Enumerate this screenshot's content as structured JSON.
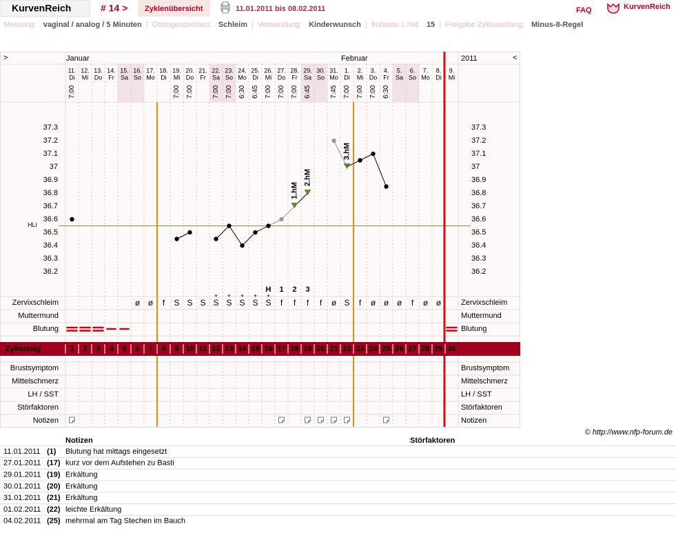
{
  "header": {
    "logo_text": "KurvenReich",
    "cycle": "# 14 >",
    "tab": "Zyklenübersicht",
    "range": "11.01.2011 bis 08.02.2011",
    "faq": "FAQ",
    "brand": "KurvenReich"
  },
  "info": {
    "separator": "|",
    "items": [
      {
        "label": "Messung:",
        "value": "vaginal / analog / 5 Minuten"
      },
      {
        "label": "Östrogenzeichen:",
        "value": "Schleim"
      },
      {
        "label": "Verwendung:",
        "value": "Kinderwunsch"
      },
      {
        "label": "früheste 1.hM:",
        "value": 15
      },
      {
        "label": "Freigabe Zyklusanfang:",
        "value": "Minus-8-Regel"
      }
    ]
  },
  "chart": {
    "nav_left": ">",
    "nav_right": "<",
    "year": "2011",
    "days": [
      {
        "date": "11.",
        "weekday": "Di",
        "time": "7:00",
        "month": "Januar"
      },
      {
        "date": "12.",
        "weekday": "Mi",
        "time": null,
        "month": null
      },
      {
        "date": "13.",
        "weekday": "Do",
        "time": null,
        "month": null
      },
      {
        "date": "14.",
        "weekday": "Fr",
        "time": null,
        "month": null
      },
      {
        "date": "15.",
        "weekday": "Sa",
        "time": null,
        "month": null
      },
      {
        "date": "16.",
        "weekday": "So",
        "time": null,
        "month": null
      },
      {
        "date": "17.",
        "weekday": "Mo",
        "time": null,
        "month": null
      },
      {
        "date": "18.",
        "weekday": "Di",
        "time": null,
        "month": null
      },
      {
        "date": "19.",
        "weekday": "Mi",
        "time": "7:00",
        "month": null
      },
      {
        "date": "20.",
        "weekday": "Do",
        "time": "7:00",
        "month": null
      },
      {
        "date": "21.",
        "weekday": "Fr",
        "time": null,
        "month": null
      },
      {
        "date": "22.",
        "weekday": "Sa",
        "time": "7:00",
        "month": null
      },
      {
        "date": "23.",
        "weekday": "So",
        "time": "7:00",
        "month": null
      },
      {
        "date": "24.",
        "weekday": "Mo",
        "time": "6:30",
        "month": null
      },
      {
        "date": "25.",
        "weekday": "Di",
        "time": "6:45",
        "month": null
      },
      {
        "date": "26.",
        "weekday": "Mi",
        "time": "7:00",
        "month": null
      },
      {
        "date": "27.",
        "weekday": "Do",
        "time": "7:00",
        "month": null
      },
      {
        "date": "28.",
        "weekday": "Fr",
        "time": "7:00",
        "month": null
      },
      {
        "date": "29.",
        "weekday": "Sa",
        "time": "6:45",
        "month": null
      },
      {
        "date": "30.",
        "weekday": "So",
        "time": null,
        "month": null
      },
      {
        "date": "31.",
        "weekday": "Mo",
        "time": "7:45",
        "month": null
      },
      {
        "date": "1.",
        "weekday": "Di",
        "time": "7:00",
        "month": "Februar"
      },
      {
        "date": "2.",
        "weekday": "Mi",
        "time": "7:00",
        "month": null
      },
      {
        "date": "3.",
        "weekday": "Do",
        "time": "7:00",
        "month": null
      },
      {
        "date": "4.",
        "weekday": "Fr",
        "time": "6:30",
        "month": null
      },
      {
        "date": "5.",
        "weekday": "Sa",
        "time": null,
        "month": null
      },
      {
        "date": "6.",
        "weekday": "So",
        "time": null,
        "month": null
      },
      {
        "date": "7.",
        "weekday": "Mo",
        "time": null,
        "month": null
      },
      {
        "date": "8.",
        "weekday": "Di",
        "time": null,
        "month": null
      },
      {
        "date": "9.",
        "weekday": "Mi",
        "time": null,
        "month": null
      }
    ],
    "temperature": [
      36.6,
      null,
      null,
      null,
      null,
      null,
      null,
      null,
      36.45,
      36.5,
      null,
      36.45,
      36.55,
      36.4,
      36.5,
      36.55,
      36.6,
      36.7,
      36.8,
      null,
      37.2,
      37.0,
      37.05,
      37.1,
      36.85,
      null,
      null,
      null,
      null,
      null
    ],
    "disregarded": [
      false,
      false,
      false,
      false,
      false,
      false,
      false,
      false,
      false,
      false,
      false,
      false,
      false,
      false,
      false,
      false,
      true,
      false,
      false,
      false,
      true,
      false,
      false,
      false,
      false,
      false,
      false,
      false,
      false,
      false
    ],
    "temperature_color": "#000000",
    "disregarded_color": "#999999",
    "hm_color": "#5a8a2a",
    "hm_labels": [
      null,
      null,
      null,
      null,
      null,
      null,
      null,
      null,
      null,
      null,
      null,
      null,
      null,
      null,
      null,
      null,
      null,
      "1.hM",
      "2.hM",
      null,
      null,
      "3.hM",
      null,
      null,
      null,
      null,
      null,
      null,
      null,
      null
    ],
    "ylim": [
      36.0,
      37.5
    ],
    "yticks": [
      37.3,
      37.2,
      37.1,
      37,
      36.9,
      36.8,
      36.7,
      36.6,
      36.5,
      36.4,
      36.3,
      36.2
    ],
    "cover_line": {
      "label": "HLi",
      "value": 36.55,
      "color": "#6a9a40"
    },
    "mucus_peak": [
      null,
      null,
      null,
      null,
      null,
      null,
      null,
      null,
      null,
      null,
      null,
      null,
      null,
      null,
      null,
      "H",
      "1",
      "2",
      "3",
      null,
      null,
      null,
      null,
      null,
      null,
      null,
      null,
      null,
      null,
      null
    ],
    "mucus": [
      null,
      null,
      null,
      null,
      null,
      "ø",
      "ø",
      "f",
      "S",
      "S",
      "S",
      "S+",
      "S+",
      "S+",
      "S+",
      "S+",
      "f",
      "f",
      "f",
      "f",
      "ø",
      "S",
      "f",
      "ø",
      "ø",
      "ø",
      "f",
      "ø",
      "ø",
      null
    ],
    "bleeding": [
      2,
      2,
      2,
      1,
      1,
      null,
      null,
      null,
      null,
      null,
      null,
      null,
      null,
      null,
      null,
      null,
      null,
      null,
      null,
      null,
      null,
      null,
      null,
      null,
      null,
      null,
      null,
      null,
      null,
      2
    ],
    "cycle_days": [
      1,
      2,
      3,
      4,
      5,
      6,
      7,
      8,
      9,
      10,
      11,
      12,
      13,
      14,
      15,
      16,
      17,
      18,
      19,
      20,
      21,
      22,
      23,
      24,
      25,
      26,
      27,
      28,
      29,
      30
    ],
    "fertile_start_day": 8,
    "fertile_end_day": 22,
    "cycle_end_day": 30,
    "notes": [
      true,
      false,
      false,
      false,
      false,
      false,
      false,
      false,
      false,
      false,
      false,
      false,
      false,
      false,
      false,
      false,
      true,
      false,
      true,
      true,
      true,
      true,
      false,
      false,
      true,
      false,
      false,
      false,
      false,
      false
    ],
    "row_labels": {
      "mucus": "Zervixschleim",
      "cervix": "Muttermund",
      "bleeding": "Blutung",
      "cycle_day": "Zyklustag",
      "breast": "Brustsymptom",
      "mittelschmerz": "Mittelschmerz",
      "lh": "LH / SST",
      "disturbance": "Störfaktoren",
      "notes": "Notizen"
    }
  },
  "copyright": "© http://www.nfp-forum.de",
  "notes_table": {
    "headers": [
      "Notizen",
      "Störfaktoren"
    ],
    "rows": [
      [
        "11.01.2011",
        "(1)",
        "Blutung hat mittags eingesetzt"
      ],
      [
        "27.01.2011",
        "(17)",
        "kurz vor dem Aufstehen zu Basti"
      ],
      [
        "29.01.2011",
        "(19)",
        "Erkältung"
      ],
      [
        "30.01.2011",
        "(20)",
        "Erkältung"
      ],
      [
        "31.01.2011",
        "(21)",
        "Erkältung"
      ],
      [
        "01.02.2011",
        "(22)",
        "leichte Erkältung"
      ],
      [
        "04.02.2011",
        "(25)",
        "mehrmal am Tag Stechen im Bauch"
      ]
    ]
  }
}
